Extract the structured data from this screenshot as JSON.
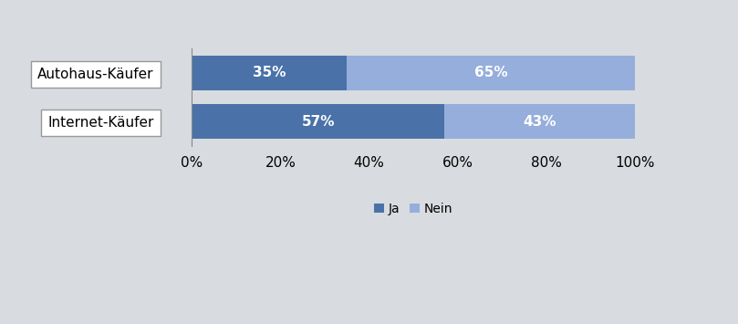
{
  "chart_data": {
    "type": "bar",
    "orientation": "horizontal",
    "stacked": true,
    "categories": [
      "Autohaus-Käufer",
      "Internet-Käufer"
    ],
    "series": [
      {
        "name": "Ja",
        "color": "#4a72a8",
        "values": [
          35,
          57
        ],
        "value_labels": [
          "35%",
          "57%"
        ]
      },
      {
        "name": "Nein",
        "color": "#95aedb",
        "values": [
          65,
          43
        ],
        "value_labels": [
          "65%",
          "43%"
        ]
      }
    ],
    "xlim": [
      0,
      100
    ],
    "xticks": [
      {
        "value": 0,
        "label": "0%"
      },
      {
        "value": 20,
        "label": "20%"
      },
      {
        "value": 40,
        "label": "40%"
      },
      {
        "value": 60,
        "label": "60%"
      },
      {
        "value": 80,
        "label": "80%"
      },
      {
        "value": 100,
        "label": "100%"
      }
    ],
    "grid": false,
    "data_labels": true,
    "legend": "lower center"
  }
}
